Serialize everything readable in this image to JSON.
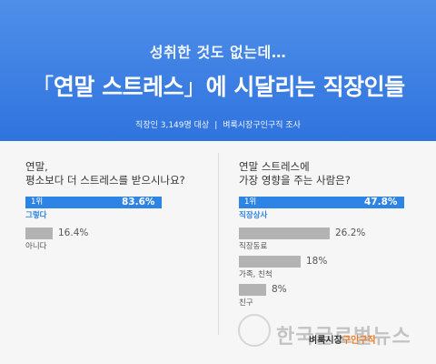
{
  "header": {
    "subtitle": "성취한 것도 없는데…",
    "title_open": "「",
    "title_highlight": "연말 스트레스",
    "title_close": "」",
    "title_rest": "에 시달리는 직장인들",
    "source_left": "직장인 3,149명 대상",
    "source_sep": "|",
    "source_right": "벼룩시장구인구직 조사",
    "bg_color": "#3a7fe4"
  },
  "colors": {
    "top_bar": "#2d84e5",
    "other_bar": "#b3b3b3",
    "top_label": "#2d84e5"
  },
  "watermark": {
    "text": "한국글로벌뉴스"
  },
  "brand": {
    "part1": "벼룩시장",
    "part2": "구인구직"
  },
  "chart_data": [
    {
      "type": "bar",
      "orientation": "horizontal",
      "title": "연말, 평소보다 더 스트레스를 받으시나요?",
      "title_lines": [
        "연말,",
        "평소보다 더 스트레스를 받으시나요?"
      ],
      "rank_label": "1위",
      "categories": [
        "그렇다",
        "아니다"
      ],
      "values": [
        83.6,
        16.4
      ],
      "value_labels": [
        "83.6%",
        "16.4%"
      ],
      "unit": "%",
      "xlim": [
        0,
        100
      ]
    },
    {
      "type": "bar",
      "orientation": "horizontal",
      "title": "연말 스트레스에 가장 영향을 주는 사람은?",
      "title_lines": [
        "연말 스트레스에",
        "가장 영향을 주는 사람은?"
      ],
      "rank_label": "1위",
      "categories": [
        "직장상사",
        "직장동료",
        "가족, 친척",
        "친구"
      ],
      "values": [
        47.8,
        26.2,
        18,
        8
      ],
      "value_labels": [
        "47.8%",
        "26.2%",
        "18%",
        "8%"
      ],
      "unit": "%",
      "xlim": [
        0,
        50
      ]
    }
  ]
}
